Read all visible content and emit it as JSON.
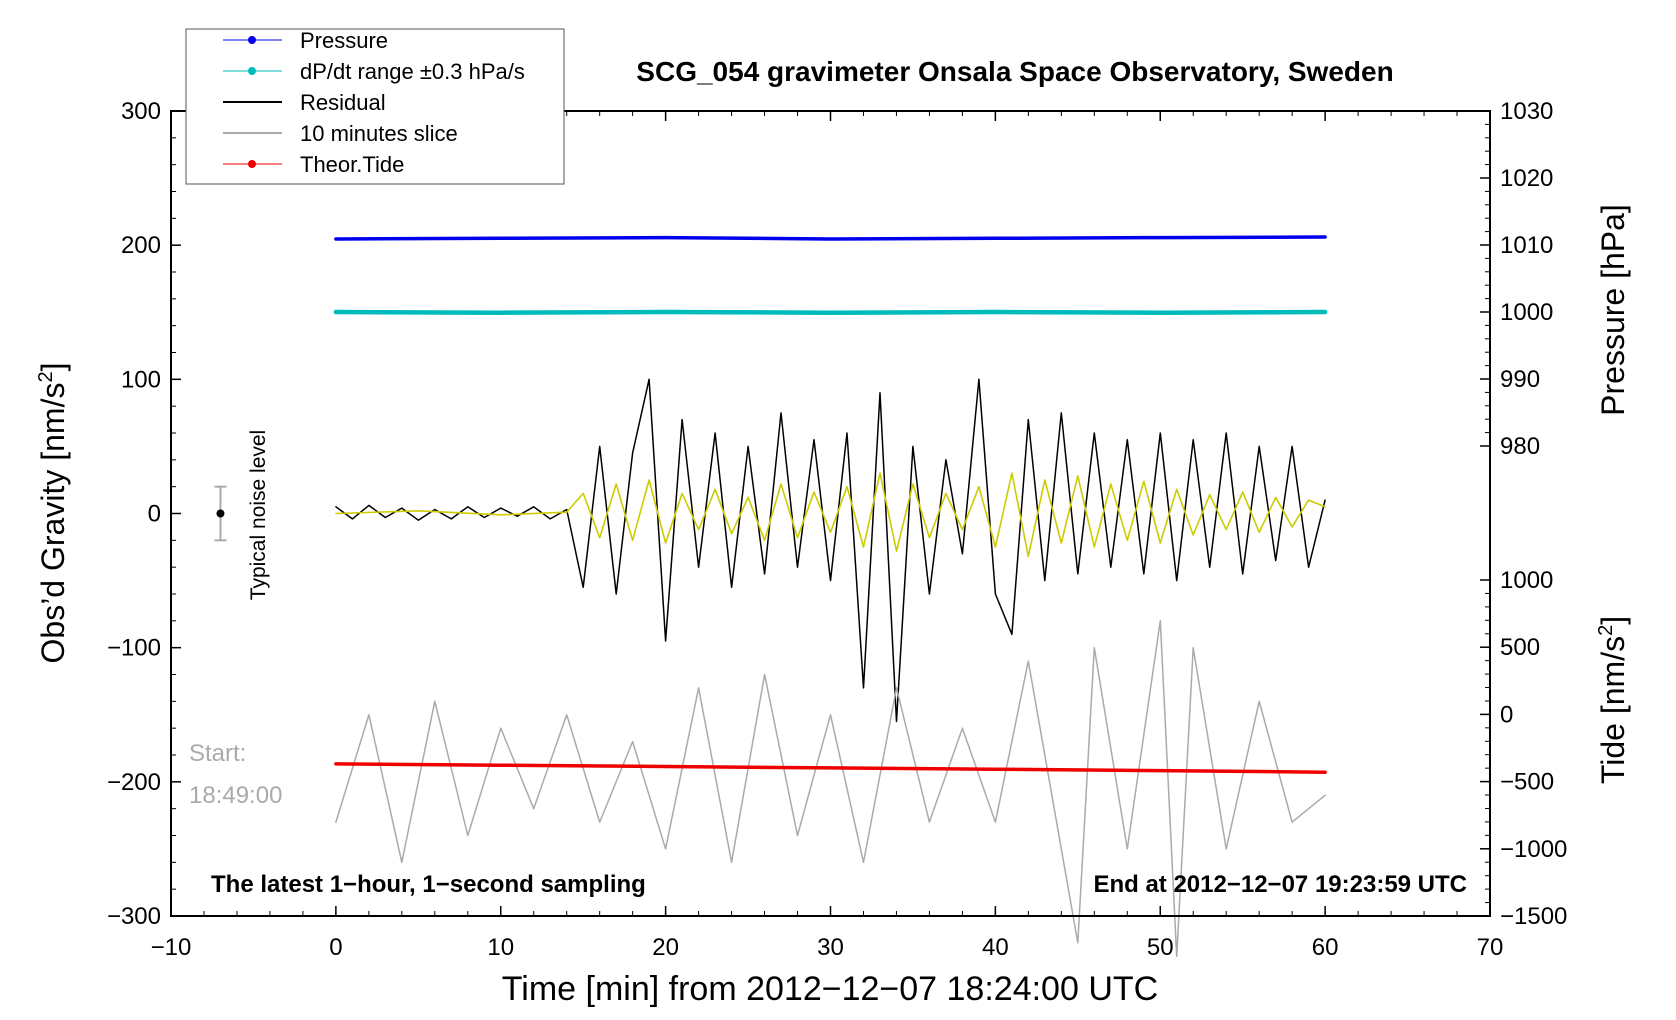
{
  "chart_data": {
    "type": "line",
    "title": "SCG_054 gravimeter Onsala Space Observatory, Sweden",
    "xlabel": "Time [min] from 2012−12−07 18:24:00 UTC",
    "xlim": [
      -10,
      70
    ],
    "x_ticks": [
      "−10",
      "0",
      "10",
      "20",
      "30",
      "40",
      "50",
      "60",
      "70"
    ],
    "y_left": {
      "label_main": "Obs’d Gravity [nm/s",
      "label_sup": "2",
      "label_end": "]",
      "lim": [
        -300,
        300
      ],
      "ticks": [
        "−300",
        "−200",
        "−100",
        "0",
        "100",
        "200",
        "300"
      ]
    },
    "y_right_pressure": {
      "label": "Pressure [hPa]",
      "lim": [
        980,
        1030
      ],
      "ticks": [
        "980",
        "990",
        "1000",
        "1010",
        "1020",
        "1030"
      ]
    },
    "y_right_tide": {
      "label_main": "Tide [nm/s",
      "label_sup": "2",
      "label_end": "]",
      "lim": [
        -1500,
        1000
      ],
      "ticks": [
        "−1500",
        "−1000",
        "−500",
        "0",
        "500",
        "1000"
      ]
    },
    "series": [
      {
        "name": "Pressure",
        "axis": "pressure",
        "color": "#0000ee",
        "x": [
          0,
          10,
          20,
          30,
          40,
          50,
          60
        ],
        "values": [
          1010.9,
          1011.0,
          1011.1,
          1010.9,
          1011.0,
          1011.1,
          1011.2
        ]
      },
      {
        "name": "dP/dt range ±0.3 hPa/s",
        "axis": "pressure",
        "color": "#00bbbb",
        "x": [
          0,
          10,
          20,
          30,
          40,
          50,
          60
        ],
        "values": [
          1000.0,
          999.9,
          1000.0,
          999.9,
          1000.0,
          999.9,
          1000.0
        ]
      },
      {
        "name": "Residual",
        "axis": "gravity",
        "color": "#000000",
        "x": [
          0,
          1,
          2,
          3,
          4,
          5,
          6,
          7,
          8,
          9,
          10,
          11,
          12,
          13,
          14,
          15,
          16,
          17,
          18,
          19,
          20,
          21,
          22,
          23,
          24,
          25,
          26,
          27,
          28,
          29,
          30,
          31,
          32,
          33,
          34,
          35,
          36,
          37,
          38,
          39,
          40,
          41,
          42,
          43,
          44,
          45,
          46,
          47,
          48,
          49,
          50,
          51,
          52,
          53,
          54,
          55,
          56,
          57,
          58,
          59,
          60
        ],
        "values": [
          5,
          -4,
          6,
          -3,
          4,
          -5,
          3,
          -4,
          5,
          -3,
          4,
          -2,
          5,
          -4,
          3,
          -55,
          50,
          -60,
          45,
          100,
          -95,
          70,
          -40,
          60,
          -55,
          50,
          -45,
          75,
          -40,
          55,
          -50,
          60,
          -130,
          90,
          -155,
          50,
          -60,
          40,
          -30,
          100,
          -60,
          -90,
          70,
          -50,
          75,
          -45,
          60,
          -40,
          55,
          -45,
          60,
          -50,
          55,
          -40,
          60,
          -45,
          50,
          -35,
          50,
          -40,
          10
        ]
      },
      {
        "name": "Yellow filtered residual",
        "axis": "gravity",
        "color": "#cccc00",
        "x": [
          0,
          5,
          10,
          14,
          15,
          16,
          17,
          18,
          19,
          20,
          21,
          22,
          23,
          24,
          25,
          26,
          27,
          28,
          29,
          30,
          31,
          32,
          33,
          34,
          35,
          36,
          37,
          38,
          39,
          40,
          41,
          42,
          43,
          44,
          45,
          46,
          47,
          48,
          49,
          50,
          51,
          52,
          53,
          54,
          55,
          56,
          57,
          58,
          59,
          60
        ],
        "values": [
          0,
          2,
          -1,
          1,
          15,
          -18,
          22,
          -20,
          25,
          -22,
          15,
          -12,
          18,
          -15,
          12,
          -20,
          22,
          -18,
          16,
          -14,
          20,
          -25,
          30,
          -28,
          22,
          -18,
          15,
          -12,
          20,
          -25,
          30,
          -32,
          25,
          -22,
          28,
          -25,
          22,
          -20,
          24,
          -22,
          18,
          -16,
          14,
          -12,
          16,
          -14,
          12,
          -10,
          10,
          5
        ]
      },
      {
        "name": "10 minutes slice",
        "axis": "gravity",
        "color": "#aaaaaa",
        "x": [
          0,
          2,
          4,
          6,
          8,
          10,
          12,
          14,
          16,
          18,
          20,
          22,
          24,
          26,
          28,
          30,
          32,
          34,
          36,
          38,
          40,
          42,
          44,
          45,
          46,
          48,
          50,
          51,
          52,
          54,
          56,
          58,
          60
        ],
        "values": [
          -230,
          -150,
          -260,
          -140,
          -240,
          -160,
          -220,
          -150,
          -230,
          -170,
          -250,
          -130,
          -260,
          -120,
          -240,
          -150,
          -260,
          -130,
          -230,
          -160,
          -230,
          -110,
          -250,
          -320,
          -100,
          -250,
          -80,
          -330,
          -100,
          -250,
          -140,
          -230,
          -210
        ]
      },
      {
        "name": "Theor.Tide",
        "axis": "tide",
        "color": "#ee0000",
        "x": [
          0,
          10,
          20,
          30,
          40,
          50,
          60
        ],
        "values": [
          -368,
          -378,
          -388,
          -398,
          -408,
          -418,
          -430
        ]
      }
    ],
    "legend": {
      "placement": "top-left",
      "entries": [
        "Pressure",
        "dP/dt range ±0.3 hPa/s",
        "Residual",
        "10 minutes slice",
        "Theor.Tide"
      ]
    },
    "annotations": {
      "noise_label": "Typical noise level",
      "start_label": "Start:",
      "start_time": "18:49:00",
      "bottom_left": "The latest 1−hour, 1−second sampling",
      "bottom_right": "End at 2012−12−07 19:23:59 UTC"
    },
    "noise_bar": {
      "x": -7,
      "center": 0,
      "half_range": 20
    }
  }
}
